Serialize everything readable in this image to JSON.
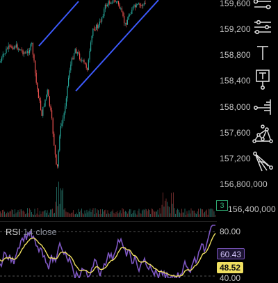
{
  "price_axis": {
    "labels": [
      "159,600",
      "159,200",
      "158,800",
      "158,400",
      "158,000",
      "157,600",
      "157,200",
      "156,800,000",
      "156,400,000"
    ]
  },
  "volume_badge": "3",
  "rsi": {
    "name": "RSI",
    "params": "14 close",
    "upper_level": "80.00",
    "value": "60.43",
    "ma_value": "48.52",
    "lower_level": "40.00"
  },
  "toolbar": {
    "tools": [
      "horizontal-ray-tool",
      "parallel-lines-tool",
      "text-tool",
      "note-tool",
      "price-label-tool",
      "pattern-tool",
      "fib-fan-tool"
    ]
  },
  "colors": {
    "up": "#26a69a",
    "down": "#ef5350",
    "channel": "#3d5afe",
    "rsi_line": "#7e57c2",
    "rsi_ma": "#f0e060"
  }
}
